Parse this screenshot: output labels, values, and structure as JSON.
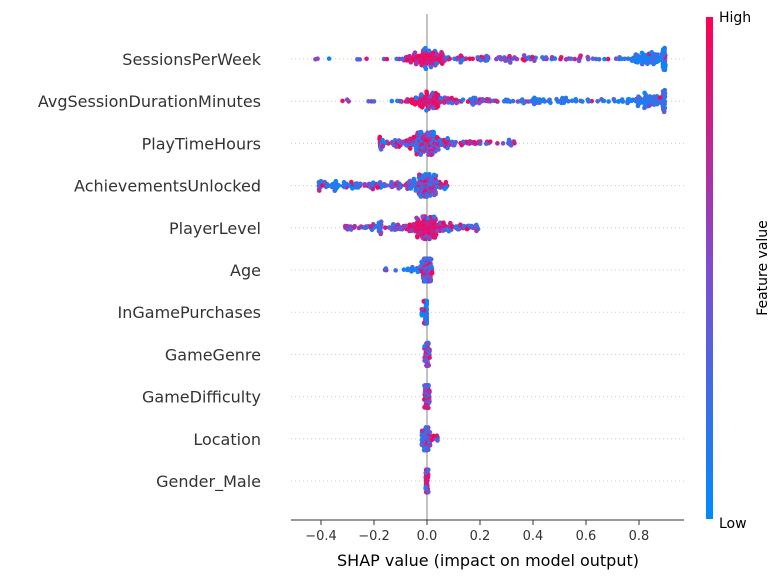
{
  "chart_data": {
    "type": "scatter",
    "subtype": "shap-beeswarm",
    "xlabel": "SHAP value (impact on model output)",
    "xlim": [
      -0.5,
      1.0
    ],
    "xticks": [
      -0.4,
      -0.2,
      0.0,
      0.2,
      0.4,
      0.6,
      0.8
    ],
    "xtick_labels": [
      "−0.4",
      "−0.2",
      "0.0",
      "0.2",
      "0.4",
      "0.6",
      "0.8"
    ],
    "colorbar": {
      "label": "Feature value",
      "high_label": "High",
      "low_label": "Low",
      "low_color": "#008bfb",
      "high_color": "#ff0052"
    },
    "features": [
      {
        "name": "SessionsPerWeek",
        "min": -0.43,
        "max": 0.9,
        "clusters": [
          {
            "center": 0.0,
            "width": 0.04,
            "weight": 0.3,
            "value": "high"
          },
          {
            "center": 0.15,
            "width": 0.2,
            "weight": 0.25,
            "value": "mixed"
          },
          {
            "center": 0.5,
            "width": 0.3,
            "weight": 0.2,
            "value": "mixed"
          },
          {
            "center": 0.85,
            "width": 0.05,
            "weight": 0.25,
            "value": "low"
          }
        ]
      },
      {
        "name": "AvgSessionDurationMinutes",
        "min": -0.35,
        "max": 0.9,
        "clusters": [
          {
            "center": 0.0,
            "width": 0.04,
            "weight": 0.3,
            "value": "high"
          },
          {
            "center": 0.2,
            "width": 0.2,
            "weight": 0.25,
            "value": "mixed"
          },
          {
            "center": 0.55,
            "width": 0.25,
            "weight": 0.2,
            "value": "low"
          },
          {
            "center": 0.85,
            "width": 0.05,
            "weight": 0.25,
            "value": "low"
          }
        ]
      },
      {
        "name": "PlayTimeHours",
        "min": -0.18,
        "max": 0.33,
        "clusters": [
          {
            "center": 0.0,
            "width": 0.03,
            "weight": 0.5,
            "value": "mixed"
          },
          {
            "center": 0.1,
            "width": 0.1,
            "weight": 0.3,
            "value": "mixed"
          },
          {
            "center": -0.1,
            "width": 0.06,
            "weight": 0.2,
            "value": "mixed"
          }
        ]
      },
      {
        "name": "AchievementsUnlocked",
        "min": -0.41,
        "max": 0.08,
        "clusters": [
          {
            "center": 0.0,
            "width": 0.03,
            "weight": 0.5,
            "value": "mixed"
          },
          {
            "center": -0.15,
            "width": 0.1,
            "weight": 0.4,
            "value": "mixed"
          },
          {
            "center": -0.35,
            "width": 0.05,
            "weight": 0.1,
            "value": "low"
          }
        ]
      },
      {
        "name": "PlayerLevel",
        "min": -0.31,
        "max": 0.2,
        "clusters": [
          {
            "center": 0.0,
            "width": 0.03,
            "weight": 0.5,
            "value": "high"
          },
          {
            "center": -0.15,
            "width": 0.1,
            "weight": 0.3,
            "value": "mixed"
          },
          {
            "center": 0.1,
            "width": 0.06,
            "weight": 0.2,
            "value": "mixed"
          }
        ]
      },
      {
        "name": "Age",
        "min": -0.16,
        "max": 0.02,
        "clusters": [
          {
            "center": 0.0,
            "width": 0.01,
            "weight": 0.85,
            "value": "mixed"
          },
          {
            "center": -0.05,
            "width": 0.03,
            "weight": 0.15,
            "value": "low"
          }
        ]
      },
      {
        "name": "InGamePurchases",
        "min": -0.02,
        "max": 0.0,
        "clusters": [
          {
            "center": 0.0,
            "width": 0.004,
            "weight": 0.9,
            "value": "low"
          },
          {
            "center": -0.012,
            "width": 0.004,
            "weight": 0.1,
            "value": "high"
          }
        ]
      },
      {
        "name": "GameGenre",
        "min": -0.01,
        "max": 0.01,
        "clusters": [
          {
            "center": 0.0,
            "width": 0.005,
            "weight": 1.0,
            "value": "mixed"
          }
        ]
      },
      {
        "name": "GameDifficulty",
        "min": -0.01,
        "max": 0.01,
        "clusters": [
          {
            "center": 0.0,
            "width": 0.005,
            "weight": 1.0,
            "value": "mixed"
          }
        ]
      },
      {
        "name": "Location",
        "min": -0.02,
        "max": 0.04,
        "clusters": [
          {
            "center": 0.0,
            "width": 0.008,
            "weight": 0.9,
            "value": "mixed"
          },
          {
            "center": 0.025,
            "width": 0.01,
            "weight": 0.1,
            "value": "mixed"
          }
        ]
      },
      {
        "name": "Gender_Male",
        "min": -0.005,
        "max": 0.005,
        "clusters": [
          {
            "center": 0.0,
            "width": 0.003,
            "weight": 1.0,
            "value": "high"
          }
        ]
      }
    ]
  }
}
